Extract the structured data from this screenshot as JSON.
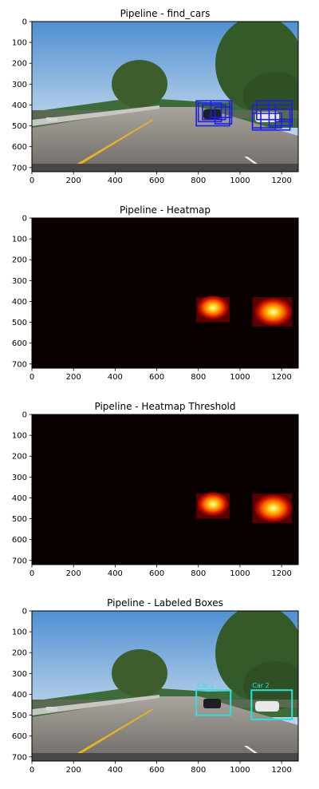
{
  "figure": {
    "panels": [
      {
        "id": "find_cars",
        "title": "Pipeline - find_cars"
      },
      {
        "id": "heatmap",
        "title": "Pipeline - Heatmap"
      },
      {
        "id": "threshold",
        "title": "Pipeline - Heatmap Threshold"
      },
      {
        "id": "labeled",
        "title": "Pipeline - Labeled Boxes"
      }
    ]
  },
  "colors": {
    "search_box": "#1e1ee6",
    "label_box": "#2fe0e0",
    "heat_background": "#0b0000",
    "sky": "#6aa0d8",
    "road": "#8a8580"
  },
  "chart_data": [
    {
      "type": "image",
      "title": "Pipeline - find_cars",
      "xlim": [
        0,
        1280
      ],
      "ylim": [
        720,
        0
      ],
      "xticks": [
        0,
        200,
        400,
        600,
        800,
        1000,
        1200
      ],
      "yticks": [
        0,
        100,
        200,
        300,
        400,
        500,
        600,
        700
      ],
      "detections": [
        {
          "x0": 790,
          "y0": 380,
          "x1": 950,
          "y1": 500
        },
        {
          "x0": 800,
          "y0": 390,
          "x1": 910,
          "y1": 480
        },
        {
          "x0": 820,
          "y0": 400,
          "x1": 930,
          "y1": 470
        },
        {
          "x0": 860,
          "y0": 380,
          "x1": 960,
          "y1": 460
        },
        {
          "x0": 880,
          "y0": 410,
          "x1": 960,
          "y1": 490
        },
        {
          "x0": 1060,
          "y0": 400,
          "x1": 1170,
          "y1": 520
        },
        {
          "x0": 1080,
          "y0": 380,
          "x1": 1250,
          "y1": 470
        },
        {
          "x0": 1100,
          "y0": 420,
          "x1": 1240,
          "y1": 520
        },
        {
          "x0": 1140,
          "y0": 380,
          "x1": 1250,
          "y1": 500
        },
        {
          "x0": 1060,
          "y0": 440,
          "x1": 1200,
          "y1": 510
        },
        {
          "x0": 1170,
          "y0": 400,
          "x1": 1250,
          "y1": 480
        }
      ]
    },
    {
      "type": "heatmap",
      "title": "Pipeline - Heatmap",
      "xlim": [
        0,
        1280
      ],
      "ylim": [
        720,
        0
      ],
      "xticks": [
        0,
        200,
        400,
        600,
        800,
        1000,
        1200
      ],
      "yticks": [
        0,
        100,
        200,
        300,
        400,
        500,
        600,
        700
      ],
      "hotspots": [
        {
          "x0": 790,
          "y0": 380,
          "x1": 950,
          "y1": 500,
          "peak_x": 870,
          "peak_y": 430
        },
        {
          "x0": 1060,
          "y0": 380,
          "x1": 1250,
          "y1": 520,
          "peak_x": 1160,
          "peak_y": 450
        }
      ]
    },
    {
      "type": "heatmap",
      "title": "Pipeline - Heatmap Threshold",
      "xlim": [
        0,
        1280
      ],
      "ylim": [
        720,
        0
      ],
      "xticks": [
        0,
        200,
        400,
        600,
        800,
        1000,
        1200
      ],
      "yticks": [
        0,
        100,
        200,
        300,
        400,
        500,
        600,
        700
      ],
      "hotspots": [
        {
          "x0": 790,
          "y0": 380,
          "x1": 950,
          "y1": 500,
          "peak_x": 870,
          "peak_y": 430
        },
        {
          "x0": 1060,
          "y0": 380,
          "x1": 1250,
          "y1": 520,
          "peak_x": 1160,
          "peak_y": 450
        }
      ]
    },
    {
      "type": "image",
      "title": "Pipeline - Labeled Boxes",
      "xlim": [
        0,
        1280
      ],
      "ylim": [
        720,
        0
      ],
      "xticks": [
        0,
        200,
        400,
        600,
        800,
        1000,
        1200
      ],
      "yticks": [
        0,
        100,
        200,
        300,
        400,
        500,
        600,
        700
      ],
      "labels": [
        {
          "text": "Car 1",
          "x0": 790,
          "y0": 380,
          "x1": 955,
          "y1": 500
        },
        {
          "text": "Car 2",
          "x0": 1055,
          "y0": 380,
          "x1": 1250,
          "y1": 520
        }
      ]
    }
  ]
}
